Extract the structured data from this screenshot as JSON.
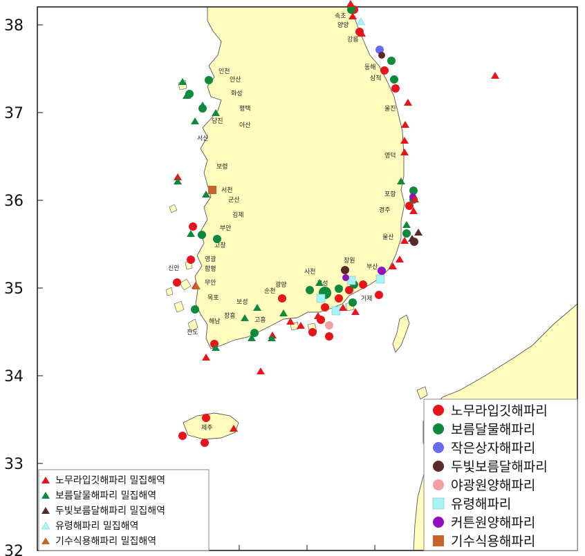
{
  "map": {
    "lat_ticks": [
      "38",
      "37",
      "36",
      "35",
      "34",
      "33",
      "32"
    ],
    "cities": [
      "속초",
      "양양",
      "강릉",
      "동해",
      "삼척",
      "울진",
      "영덕",
      "포항",
      "경주",
      "울산",
      "부산",
      "창원",
      "거제",
      "고성",
      "사천",
      "광양",
      "순천",
      "보성",
      "고흥",
      "장흥",
      "해남",
      "진도",
      "목포",
      "무안",
      "신안",
      "함평",
      "영광",
      "고창",
      "부안",
      "김제",
      "군산",
      "서천",
      "보령",
      "서산",
      "당진",
      "아산",
      "평택",
      "화성",
      "안산",
      "인천",
      "제주"
    ],
    "colors": {
      "land": "#fffcbd",
      "coast": "#555555",
      "red": "#e8141a",
      "green": "#0f8a3c",
      "blue": "#6a6aee",
      "brown": "#5a2a2a",
      "pink": "#f4a0a0",
      "cyan": "#a8f4f4",
      "purple": "#9010c0",
      "orange": "#c8642a"
    }
  },
  "legend_areas": {
    "items": [
      {
        "label": "노무라입깃해파리 밀집해역",
        "color": "#e8141a",
        "symbol": "triangle"
      },
      {
        "label": "보름달물해파리 밀집해역",
        "color": "#0f8a3c",
        "symbol": "triangle"
      },
      {
        "label": "두빛보름달해파리 밀집해역",
        "color": "#5a2a2a",
        "symbol": "triangle"
      },
      {
        "label": "유령해파리 밀집해역",
        "color": "#a8f4f4",
        "symbol": "triangle"
      },
      {
        "label": "기수식용해파리 밀집해역",
        "color": "#c8642a",
        "symbol": "triangle"
      }
    ]
  },
  "legend_species": {
    "items": [
      {
        "label": "노무라입깃해파리",
        "color": "#e8141a",
        "symbol": "circle"
      },
      {
        "label": "보름달물해파리",
        "color": "#0f8a3c",
        "symbol": "circle"
      },
      {
        "label": "작은상자해파리",
        "color": "#6a6aee",
        "symbol": "circle"
      },
      {
        "label": "두빛보름달해파리",
        "color": "#5a2a2a",
        "symbol": "circle"
      },
      {
        "label": "야광원양해파리",
        "color": "#f4a0a0",
        "symbol": "circle"
      },
      {
        "label": "유령해파리",
        "color": "#a8f4f4",
        "symbol": "square"
      },
      {
        "label": "커튼원양해파리",
        "color": "#9010c0",
        "symbol": "circle"
      },
      {
        "label": "기수식용해파리",
        "color": "#c8642a",
        "symbol": "square"
      }
    ]
  }
}
